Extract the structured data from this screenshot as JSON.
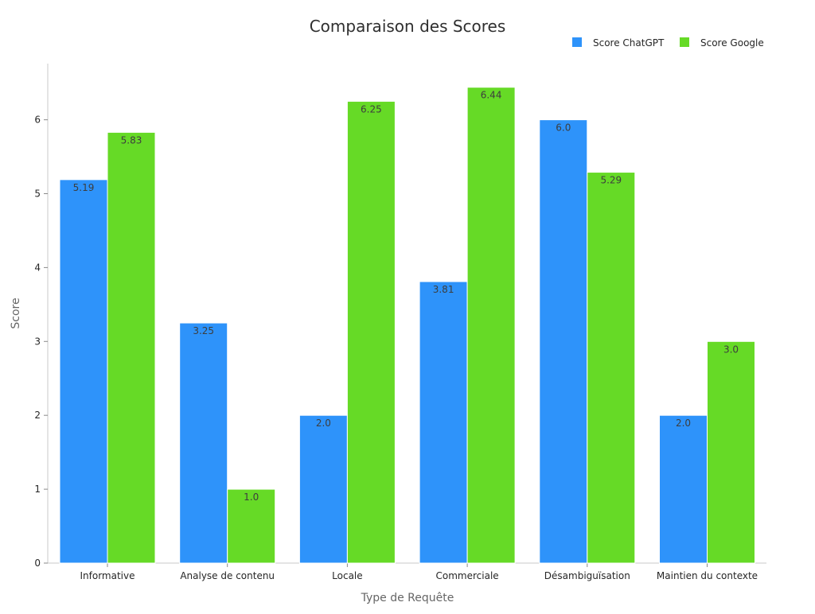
{
  "chart_data": {
    "type": "bar",
    "title": "Comparaison des Scores",
    "xlabel": "Type de Requête",
    "ylabel": "Score",
    "categories": [
      "Informative",
      "Analyse de contenu",
      "Locale",
      "Commerciale",
      "Désambiguïsation",
      "Maintien du contexte"
    ],
    "series": [
      {
        "name": "Score ChatGPT",
        "color": "#2e93fa",
        "values": [
          5.19,
          3.25,
          2.0,
          3.81,
          6.0,
          2.0
        ],
        "labels": [
          "5.19",
          "3.25",
          "2.0",
          "3.81",
          "6.0",
          "2.0"
        ]
      },
      {
        "name": "Score Google",
        "color": "#66da26",
        "values": [
          5.83,
          1.0,
          6.25,
          6.44,
          5.29,
          3.0
        ],
        "labels": [
          "5.83",
          "1.0",
          "6.25",
          "6.44",
          "5.29",
          "3.0"
        ]
      }
    ],
    "yticks": [
      0,
      1,
      2,
      3,
      4,
      5,
      6
    ],
    "ylim": [
      0,
      6.76
    ],
    "grid": false,
    "legend_position": "top-right"
  }
}
